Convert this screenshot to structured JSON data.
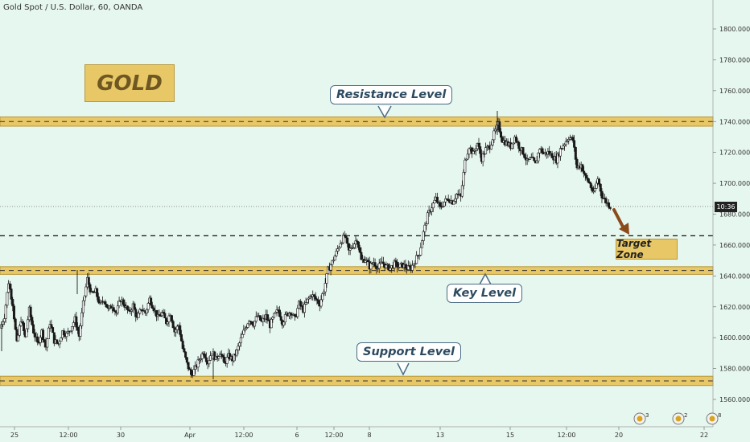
{
  "header": {
    "symbol_title": "Gold Spot / U.S. Dollar, 60, OANDA"
  },
  "annotations": {
    "gold_badge": "GOLD",
    "resistance": "Resistance Level",
    "key_level": "Key Level",
    "support": "Support Level",
    "target_zone": "Target Zone",
    "current_time_tag": "10:36"
  },
  "event_markers": [
    "3",
    "2",
    "8"
  ],
  "colors": {
    "background": "#e6f7ef",
    "zone_fill": "#e8c766",
    "zone_border": "#b8983a",
    "candle": "#1a1a1a",
    "callout_border": "#4a6c84",
    "arrow": "#8b4a1a"
  },
  "chart_data": {
    "type": "candlestick",
    "y_axis": {
      "range": [
        1545,
        1820
      ],
      "ticks": [
        1560,
        1580,
        1600,
        1620,
        1640,
        1660,
        1680,
        1700,
        1720,
        1740,
        1760,
        1780,
        1800
      ],
      "tick_labels": [
        "1560.000",
        "1580.000",
        "1600.000",
        "1620.000",
        "1640.000",
        "1660.000",
        "1680.000",
        "1700.000",
        "1720.000",
        "1740.000",
        "1760.000",
        "1780.000",
        "1800.000"
      ]
    },
    "x_axis": {
      "ticks": [
        "25",
        "12:00",
        "30",
        "Apr",
        "12:00",
        "6",
        "12:00",
        "8",
        "13",
        "15",
        "12:00",
        "20",
        "22"
      ]
    },
    "zones": [
      {
        "name": "Resistance Level",
        "low": 1737,
        "high": 1743
      },
      {
        "name": "Key Level",
        "low": 1641,
        "high": 1646
      },
      {
        "name": "Support Level",
        "low": 1569,
        "high": 1575
      }
    ],
    "target_line": 1666,
    "current_price": 1685,
    "price_path": [
      1606,
      1614,
      1636,
      1622,
      1596,
      1612,
      1600,
      1618,
      1604,
      1596,
      1604,
      1594,
      1610,
      1598,
      1596,
      1604,
      1602,
      1606,
      1612,
      1601,
      1622,
      1638,
      1628,
      1630,
      1621,
      1625,
      1618,
      1621,
      1616,
      1625,
      1621,
      1616,
      1621,
      1612,
      1619,
      1616,
      1625,
      1619,
      1613,
      1616,
      1610,
      1616,
      1604,
      1608,
      1593,
      1583,
      1576,
      1580,
      1586,
      1591,
      1584,
      1591,
      1586,
      1591,
      1583,
      1588,
      1586,
      1591,
      1599,
      1606,
      1612,
      1609,
      1614,
      1610,
      1614,
      1608,
      1614,
      1618,
      1610,
      1615,
      1617,
      1612,
      1622,
      1618,
      1624,
      1628,
      1625,
      1622,
      1631,
      1644,
      1649,
      1655,
      1662,
      1666,
      1656,
      1660,
      1664,
      1650,
      1651,
      1646,
      1649,
      1645,
      1649,
      1646,
      1645,
      1648,
      1646,
      1647,
      1645,
      1645,
      1650,
      1655,
      1668,
      1679,
      1685,
      1690,
      1684,
      1688,
      1690,
      1688,
      1693,
      1691,
      1714,
      1724,
      1719,
      1726,
      1716,
      1722,
      1724,
      1732,
      1738,
      1728,
      1726,
      1724,
      1730,
      1724,
      1720,
      1714,
      1716,
      1712,
      1723,
      1719,
      1720,
      1718,
      1715,
      1722,
      1726,
      1730,
      1728,
      1710,
      1712,
      1704,
      1700,
      1693,
      1703,
      1692,
      1688,
      1685
    ]
  }
}
